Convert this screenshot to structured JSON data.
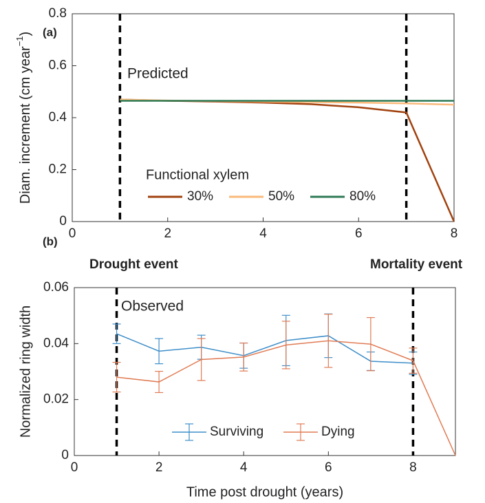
{
  "chart_data": [
    {
      "type": "line",
      "panel_label": "(a)",
      "annotation": "Predicted",
      "ylabel": [
        "Diam. increment (cm year",
        "−1",
        ")"
      ],
      "x": [
        1,
        2,
        3,
        4,
        5,
        6,
        7,
        8
      ],
      "series": [
        {
          "name": "30%",
          "color": "#a1420f",
          "values": [
            0.47,
            0.465,
            0.462,
            0.458,
            0.452,
            0.44,
            0.42,
            0.0
          ]
        },
        {
          "name": "50%",
          "color": "#f9b97a",
          "values": [
            0.47,
            0.466,
            0.464,
            0.462,
            0.46,
            0.458,
            0.455,
            0.45
          ]
        },
        {
          "name": "80%",
          "color": "#2f7a55",
          "values": [
            0.465,
            0.465,
            0.465,
            0.465,
            0.465,
            0.465,
            0.465,
            0.465
          ]
        }
      ],
      "legend_title": "Functional xylem",
      "vlines": [
        1,
        7
      ],
      "xlim": [
        0,
        8
      ],
      "xticks": [
        0,
        2,
        4,
        6,
        8
      ],
      "ylim": [
        0,
        0.8
      ],
      "yticks": [
        0,
        0.2,
        0.4,
        0.6,
        0.8
      ]
    },
    {
      "type": "errorbar",
      "panel_label": "(b)",
      "annotation": "Observed",
      "event_labels": [
        "Drought event",
        "Mortality event"
      ],
      "xlabel": "Time post drought (years)",
      "ylabel": "Normalized ring width",
      "series": [
        {
          "name": "Surviving",
          "color": "#3d8ec9",
          "x": [
            1,
            2,
            3,
            4,
            5,
            6,
            7,
            8
          ],
          "values": [
            0.0435,
            0.0373,
            0.0387,
            0.0357,
            0.0411,
            0.0428,
            0.0337,
            0.033
          ],
          "errors": [
            0.0035,
            0.0045,
            0.0043,
            0.0045,
            0.009,
            0.0078,
            0.0033,
            0.004
          ]
        },
        {
          "name": "Dying",
          "color": "#e07b54",
          "x": [
            1,
            2,
            3,
            4,
            5,
            6,
            7,
            8,
            9
          ],
          "values": [
            0.028,
            0.0263,
            0.0343,
            0.0352,
            0.0395,
            0.041,
            0.0398,
            0.0339,
            0.0
          ],
          "errors": [
            0.0053,
            0.0038,
            0.0075,
            0.005,
            0.0085,
            0.0095,
            0.0095,
            0.0045,
            null
          ]
        }
      ],
      "vlines": [
        1,
        8
      ],
      "xlim": [
        0,
        9
      ],
      "xticks": [
        0,
        2,
        4,
        6,
        8
      ],
      "ylim": [
        0,
        0.06
      ],
      "yticks": [
        0,
        0.02,
        0.04,
        0.06
      ]
    }
  ]
}
